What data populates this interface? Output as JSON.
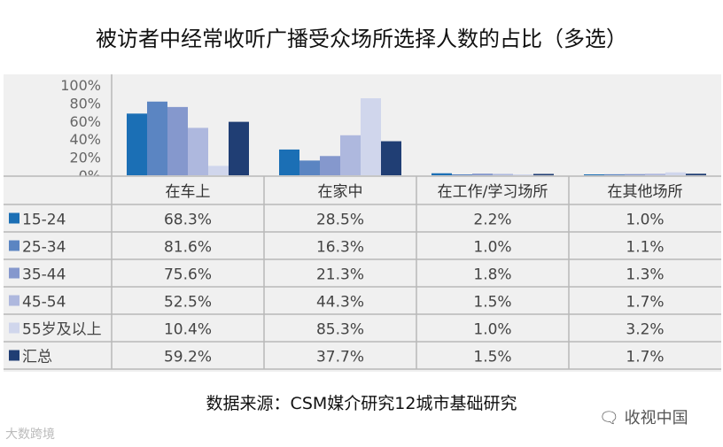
{
  "title": "被访者中经常收听广播受众场所选择人数的占比（多选）",
  "source": "数据来源：CSM媒介研究12城市基础研究",
  "watermark_left": "大数跨境",
  "watermark_right": "收视中国",
  "chart_data": {
    "type": "bar",
    "title": "被访者中经常收听广播受众场所选择人数的占比（多选）",
    "categories": [
      "在车上",
      "在家中",
      "在工作/学习场所",
      "在其他场所"
    ],
    "y_ticks": [
      "100%",
      "80%",
      "60%",
      "40%",
      "20%",
      "0%"
    ],
    "ylim": [
      0,
      100
    ],
    "grid": false,
    "legend": "table-rows-left",
    "series": [
      {
        "name": "15-24",
        "color": "#1b6fb5",
        "values": [
          68.3,
          28.5,
          2.2,
          1.0
        ],
        "labels": [
          "68.3%",
          "28.5%",
          "2.2%",
          "1.0%"
        ]
      },
      {
        "name": "25-34",
        "color": "#5b85c2",
        "values": [
          81.6,
          16.3,
          1.0,
          1.1
        ],
        "labels": [
          "81.6%",
          "16.3%",
          "1.0%",
          "1.1%"
        ]
      },
      {
        "name": "35-44",
        "color": "#8598cd",
        "values": [
          75.6,
          21.3,
          1.8,
          1.3
        ],
        "labels": [
          "75.6%",
          "21.3%",
          "1.8%",
          "1.3%"
        ]
      },
      {
        "name": "45-54",
        "color": "#aeb8de",
        "values": [
          52.5,
          44.3,
          1.5,
          1.7
        ],
        "labels": [
          "52.5%",
          "44.3%",
          "1.5%",
          "1.7%"
        ]
      },
      {
        "name": "55岁及以上",
        "color": "#d0d6ec",
        "values": [
          10.4,
          85.3,
          1.0,
          3.2
        ],
        "labels": [
          "10.4%",
          "85.3%",
          "1.0%",
          "3.2%"
        ]
      },
      {
        "name": "汇总",
        "color": "#203e74",
        "values": [
          59.2,
          37.7,
          1.5,
          1.7
        ],
        "labels": [
          "59.2%",
          "37.7%",
          "1.5%",
          "1.7%"
        ]
      }
    ]
  }
}
